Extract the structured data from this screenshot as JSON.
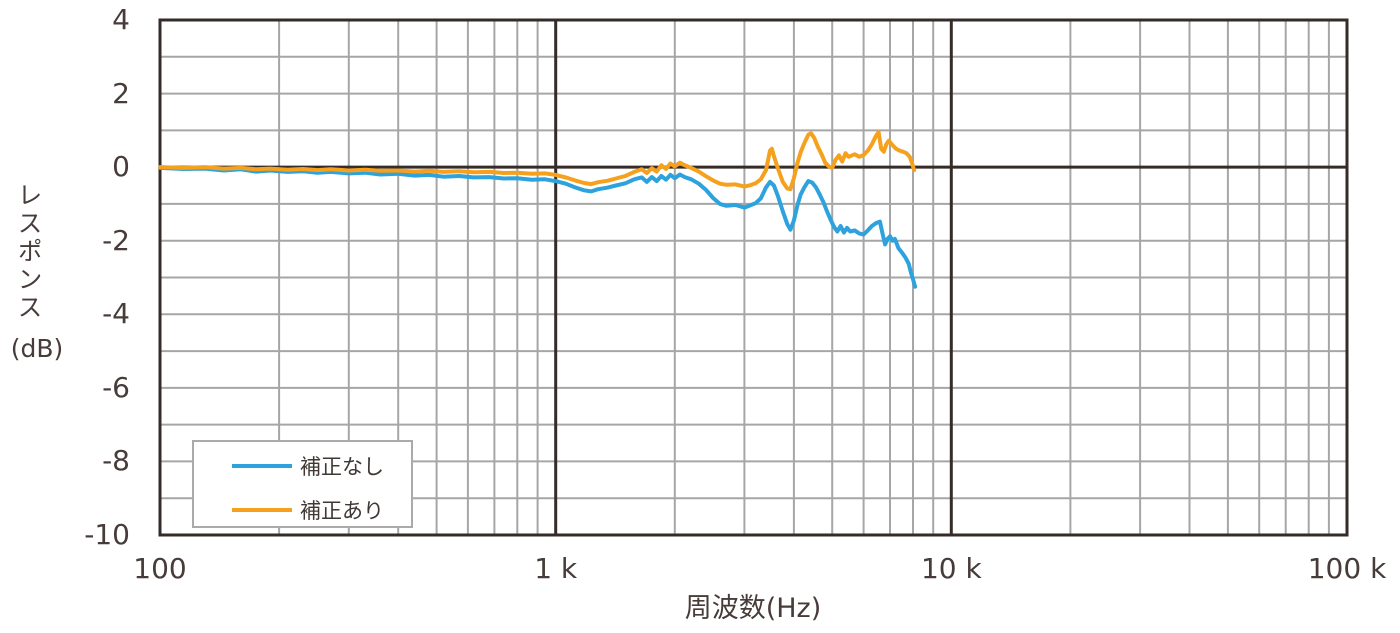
{
  "chart_data": {
    "type": "line",
    "title": "",
    "xlabel": "周波数(Hz)",
    "ylabel": "レスポンス",
    "ylabel_unit": "(dB)",
    "x_scale": "log",
    "xlim": [
      100,
      100000
    ],
    "ylim": [
      -10,
      4
    ],
    "grid": "on",
    "legend_position": "bottom-left",
    "colors": {
      "background": "#ffffff",
      "grid_minor": "#a6a6a6",
      "grid_major": "#352b28",
      "text": "#473c39"
    },
    "y_ticks": [
      "4",
      "2",
      "0",
      "-2",
      "-4",
      "-6",
      "-8",
      "-10"
    ],
    "x_ticks": [
      {
        "value": 100,
        "label": "100"
      },
      {
        "value": 1000,
        "label": "1 k"
      },
      {
        "value": 10000,
        "label": "10 k"
      },
      {
        "value": 100000,
        "label": "100 k"
      }
    ],
    "series": [
      {
        "id": "uncorrected",
        "name": "補正なし",
        "color": "#2da2dc",
        "points": [
          [
            100,
            -0.02
          ],
          [
            115,
            -0.05
          ],
          [
            130,
            -0.04
          ],
          [
            145,
            -0.09
          ],
          [
            160,
            -0.06
          ],
          [
            175,
            -0.12
          ],
          [
            190,
            -0.09
          ],
          [
            210,
            -0.13
          ],
          [
            230,
            -0.11
          ],
          [
            250,
            -0.15
          ],
          [
            270,
            -0.13
          ],
          [
            300,
            -0.17
          ],
          [
            330,
            -0.15
          ],
          [
            360,
            -0.2
          ],
          [
            400,
            -0.18
          ],
          [
            440,
            -0.23
          ],
          [
            480,
            -0.21
          ],
          [
            520,
            -0.26
          ],
          [
            570,
            -0.24
          ],
          [
            620,
            -0.28
          ],
          [
            680,
            -0.27
          ],
          [
            740,
            -0.31
          ],
          [
            800,
            -0.3
          ],
          [
            870,
            -0.34
          ],
          [
            940,
            -0.33
          ],
          [
            1000,
            -0.38
          ],
          [
            1060,
            -0.45
          ],
          [
            1120,
            -0.55
          ],
          [
            1180,
            -0.63
          ],
          [
            1230,
            -0.66
          ],
          [
            1280,
            -0.6
          ],
          [
            1350,
            -0.56
          ],
          [
            1420,
            -0.5
          ],
          [
            1500,
            -0.44
          ],
          [
            1580,
            -0.33
          ],
          [
            1650,
            -0.28
          ],
          [
            1700,
            -0.4
          ],
          [
            1750,
            -0.27
          ],
          [
            1800,
            -0.38
          ],
          [
            1850,
            -0.24
          ],
          [
            1900,
            -0.34
          ],
          [
            1950,
            -0.21
          ],
          [
            2000,
            -0.3
          ],
          [
            2060,
            -0.2
          ],
          [
            2120,
            -0.27
          ],
          [
            2200,
            -0.33
          ],
          [
            2300,
            -0.45
          ],
          [
            2400,
            -0.62
          ],
          [
            2500,
            -0.84
          ],
          [
            2600,
            -1.0
          ],
          [
            2700,
            -1.05
          ],
          [
            2850,
            -1.03
          ],
          [
            3000,
            -1.1
          ],
          [
            3100,
            -1.04
          ],
          [
            3200,
            -0.98
          ],
          [
            3300,
            -0.85
          ],
          [
            3400,
            -0.55
          ],
          [
            3480,
            -0.4
          ],
          [
            3560,
            -0.5
          ],
          [
            3650,
            -0.8
          ],
          [
            3750,
            -1.2
          ],
          [
            3850,
            -1.55
          ],
          [
            3920,
            -1.7
          ],
          [
            4000,
            -1.45
          ],
          [
            4080,
            -1.05
          ],
          [
            4160,
            -0.75
          ],
          [
            4250,
            -0.55
          ],
          [
            4350,
            -0.38
          ],
          [
            4450,
            -0.42
          ],
          [
            4550,
            -0.55
          ],
          [
            4650,
            -0.75
          ],
          [
            4750,
            -0.95
          ],
          [
            4850,
            -1.2
          ],
          [
            4950,
            -1.42
          ],
          [
            5050,
            -1.62
          ],
          [
            5150,
            -1.75
          ],
          [
            5250,
            -1.6
          ],
          [
            5350,
            -1.78
          ],
          [
            5450,
            -1.65
          ],
          [
            5550,
            -1.75
          ],
          [
            5700,
            -1.72
          ],
          [
            5850,
            -1.8
          ],
          [
            6000,
            -1.83
          ],
          [
            6150,
            -1.72
          ],
          [
            6300,
            -1.6
          ],
          [
            6450,
            -1.52
          ],
          [
            6600,
            -1.48
          ],
          [
            6700,
            -1.8
          ],
          [
            6800,
            -2.1
          ],
          [
            6900,
            -1.95
          ],
          [
            7000,
            -1.88
          ],
          [
            7100,
            -2.0
          ],
          [
            7200,
            -1.95
          ],
          [
            7350,
            -2.2
          ],
          [
            7500,
            -2.32
          ],
          [
            7650,
            -2.45
          ],
          [
            7800,
            -2.62
          ],
          [
            7900,
            -2.85
          ],
          [
            8000,
            -3.05
          ],
          [
            8100,
            -3.25
          ]
        ]
      },
      {
        "id": "corrected",
        "name": "補正あり",
        "color": "#f5a11e",
        "points": [
          [
            100,
            0.0
          ],
          [
            115,
            -0.02
          ],
          [
            130,
            0.0
          ],
          [
            145,
            -0.04
          ],
          [
            160,
            -0.02
          ],
          [
            175,
            -0.06
          ],
          [
            190,
            -0.04
          ],
          [
            210,
            -0.07
          ],
          [
            230,
            -0.05
          ],
          [
            250,
            -0.08
          ],
          [
            270,
            -0.06
          ],
          [
            300,
            -0.09
          ],
          [
            330,
            -0.07
          ],
          [
            360,
            -0.1
          ],
          [
            400,
            -0.09
          ],
          [
            440,
            -0.12
          ],
          [
            480,
            -0.1
          ],
          [
            520,
            -0.13
          ],
          [
            570,
            -0.11
          ],
          [
            620,
            -0.14
          ],
          [
            680,
            -0.13
          ],
          [
            740,
            -0.16
          ],
          [
            800,
            -0.15
          ],
          [
            870,
            -0.18
          ],
          [
            940,
            -0.17
          ],
          [
            1000,
            -0.21
          ],
          [
            1060,
            -0.28
          ],
          [
            1120,
            -0.36
          ],
          [
            1180,
            -0.43
          ],
          [
            1230,
            -0.46
          ],
          [
            1280,
            -0.41
          ],
          [
            1350,
            -0.37
          ],
          [
            1420,
            -0.31
          ],
          [
            1500,
            -0.24
          ],
          [
            1580,
            -0.13
          ],
          [
            1650,
            -0.06
          ],
          [
            1700,
            -0.16
          ],
          [
            1750,
            -0.03
          ],
          [
            1800,
            -0.12
          ],
          [
            1850,
            0.05
          ],
          [
            1900,
            -0.05
          ],
          [
            1950,
            0.1
          ],
          [
            2000,
            0.02
          ],
          [
            2060,
            0.12
          ],
          [
            2120,
            0.05
          ],
          [
            2200,
            -0.02
          ],
          [
            2300,
            -0.12
          ],
          [
            2400,
            -0.25
          ],
          [
            2500,
            -0.36
          ],
          [
            2600,
            -0.45
          ],
          [
            2700,
            -0.48
          ],
          [
            2850,
            -0.47
          ],
          [
            3000,
            -0.53
          ],
          [
            3100,
            -0.49
          ],
          [
            3200,
            -0.44
          ],
          [
            3300,
            -0.33
          ],
          [
            3400,
            -0.08
          ],
          [
            3480,
            0.45
          ],
          [
            3520,
            0.5
          ],
          [
            3560,
            0.3
          ],
          [
            3650,
            -0.05
          ],
          [
            3750,
            -0.4
          ],
          [
            3850,
            -0.58
          ],
          [
            3920,
            -0.6
          ],
          [
            4000,
            -0.3
          ],
          [
            4080,
            0.1
          ],
          [
            4160,
            0.4
          ],
          [
            4250,
            0.65
          ],
          [
            4350,
            0.88
          ],
          [
            4420,
            0.92
          ],
          [
            4500,
            0.8
          ],
          [
            4600,
            0.55
          ],
          [
            4700,
            0.35
          ],
          [
            4800,
            0.12
          ],
          [
            4900,
            0.02
          ],
          [
            5000,
            -0.02
          ],
          [
            5100,
            0.2
          ],
          [
            5200,
            0.32
          ],
          [
            5300,
            0.15
          ],
          [
            5400,
            0.38
          ],
          [
            5500,
            0.28
          ],
          [
            5700,
            0.35
          ],
          [
            5850,
            0.28
          ],
          [
            6000,
            0.33
          ],
          [
            6150,
            0.45
          ],
          [
            6300,
            0.62
          ],
          [
            6450,
            0.85
          ],
          [
            6550,
            0.95
          ],
          [
            6650,
            0.5
          ],
          [
            6750,
            0.42
          ],
          [
            6850,
            0.62
          ],
          [
            6950,
            0.72
          ],
          [
            7100,
            0.6
          ],
          [
            7250,
            0.5
          ],
          [
            7400,
            0.45
          ],
          [
            7550,
            0.42
          ],
          [
            7700,
            0.38
          ],
          [
            7850,
            0.28
          ],
          [
            7950,
            0.12
          ],
          [
            8050,
            -0.08
          ]
        ]
      }
    ],
    "legend": [
      {
        "label": "補正なし"
      },
      {
        "label": "補正あり"
      }
    ]
  }
}
